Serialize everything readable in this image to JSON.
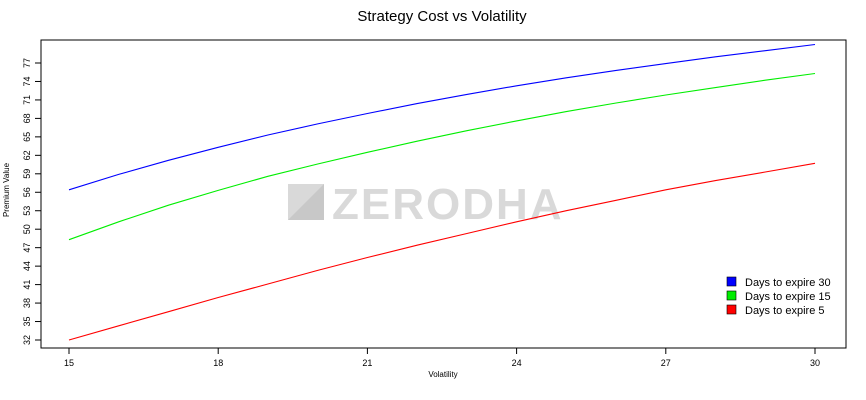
{
  "chart_data": {
    "type": "line",
    "title": "Strategy Cost vs Volatility",
    "xlabel": "Volatility",
    "ylabel": "Premium Value",
    "xlim": [
      15,
      30
    ],
    "ylim": [
      32,
      79
    ],
    "x_ticks": [
      15,
      18,
      21,
      24,
      27,
      30
    ],
    "y_ticks": [
      32,
      35,
      38,
      41,
      44,
      47,
      50,
      53,
      56,
      59,
      62,
      65,
      68,
      71,
      74,
      77
    ],
    "grid": false,
    "legend_position": "bottom-right",
    "x": [
      15,
      16,
      17,
      18,
      19,
      20,
      21,
      22,
      23,
      24,
      25,
      26,
      27,
      28,
      29,
      30
    ],
    "series": [
      {
        "name": "Days to expire 30",
        "color": "#0000ff",
        "values": [
          56.4,
          58.9,
          61.2,
          63.3,
          65.3,
          67.1,
          68.8,
          70.4,
          71.9,
          73.3,
          74.6,
          75.8,
          76.9,
          78.0,
          79.0,
          80.0
        ]
      },
      {
        "name": "Days to expire 15",
        "color": "#00ee00",
        "values": [
          48.3,
          51.2,
          53.9,
          56.3,
          58.6,
          60.6,
          62.5,
          64.3,
          66.0,
          67.6,
          69.1,
          70.5,
          71.8,
          73.0,
          74.2,
          75.3
        ]
      },
      {
        "name": "Days to expire 5",
        "color": "#ff0000",
        "values": [
          32.0,
          34.3,
          36.6,
          38.9,
          41.1,
          43.3,
          45.4,
          47.4,
          49.3,
          51.2,
          53.0,
          54.7,
          56.4,
          57.9,
          59.3,
          60.7
        ]
      }
    ]
  },
  "watermark": {
    "text": "ZERODHA",
    "icon": "zerodha-logo-icon"
  }
}
